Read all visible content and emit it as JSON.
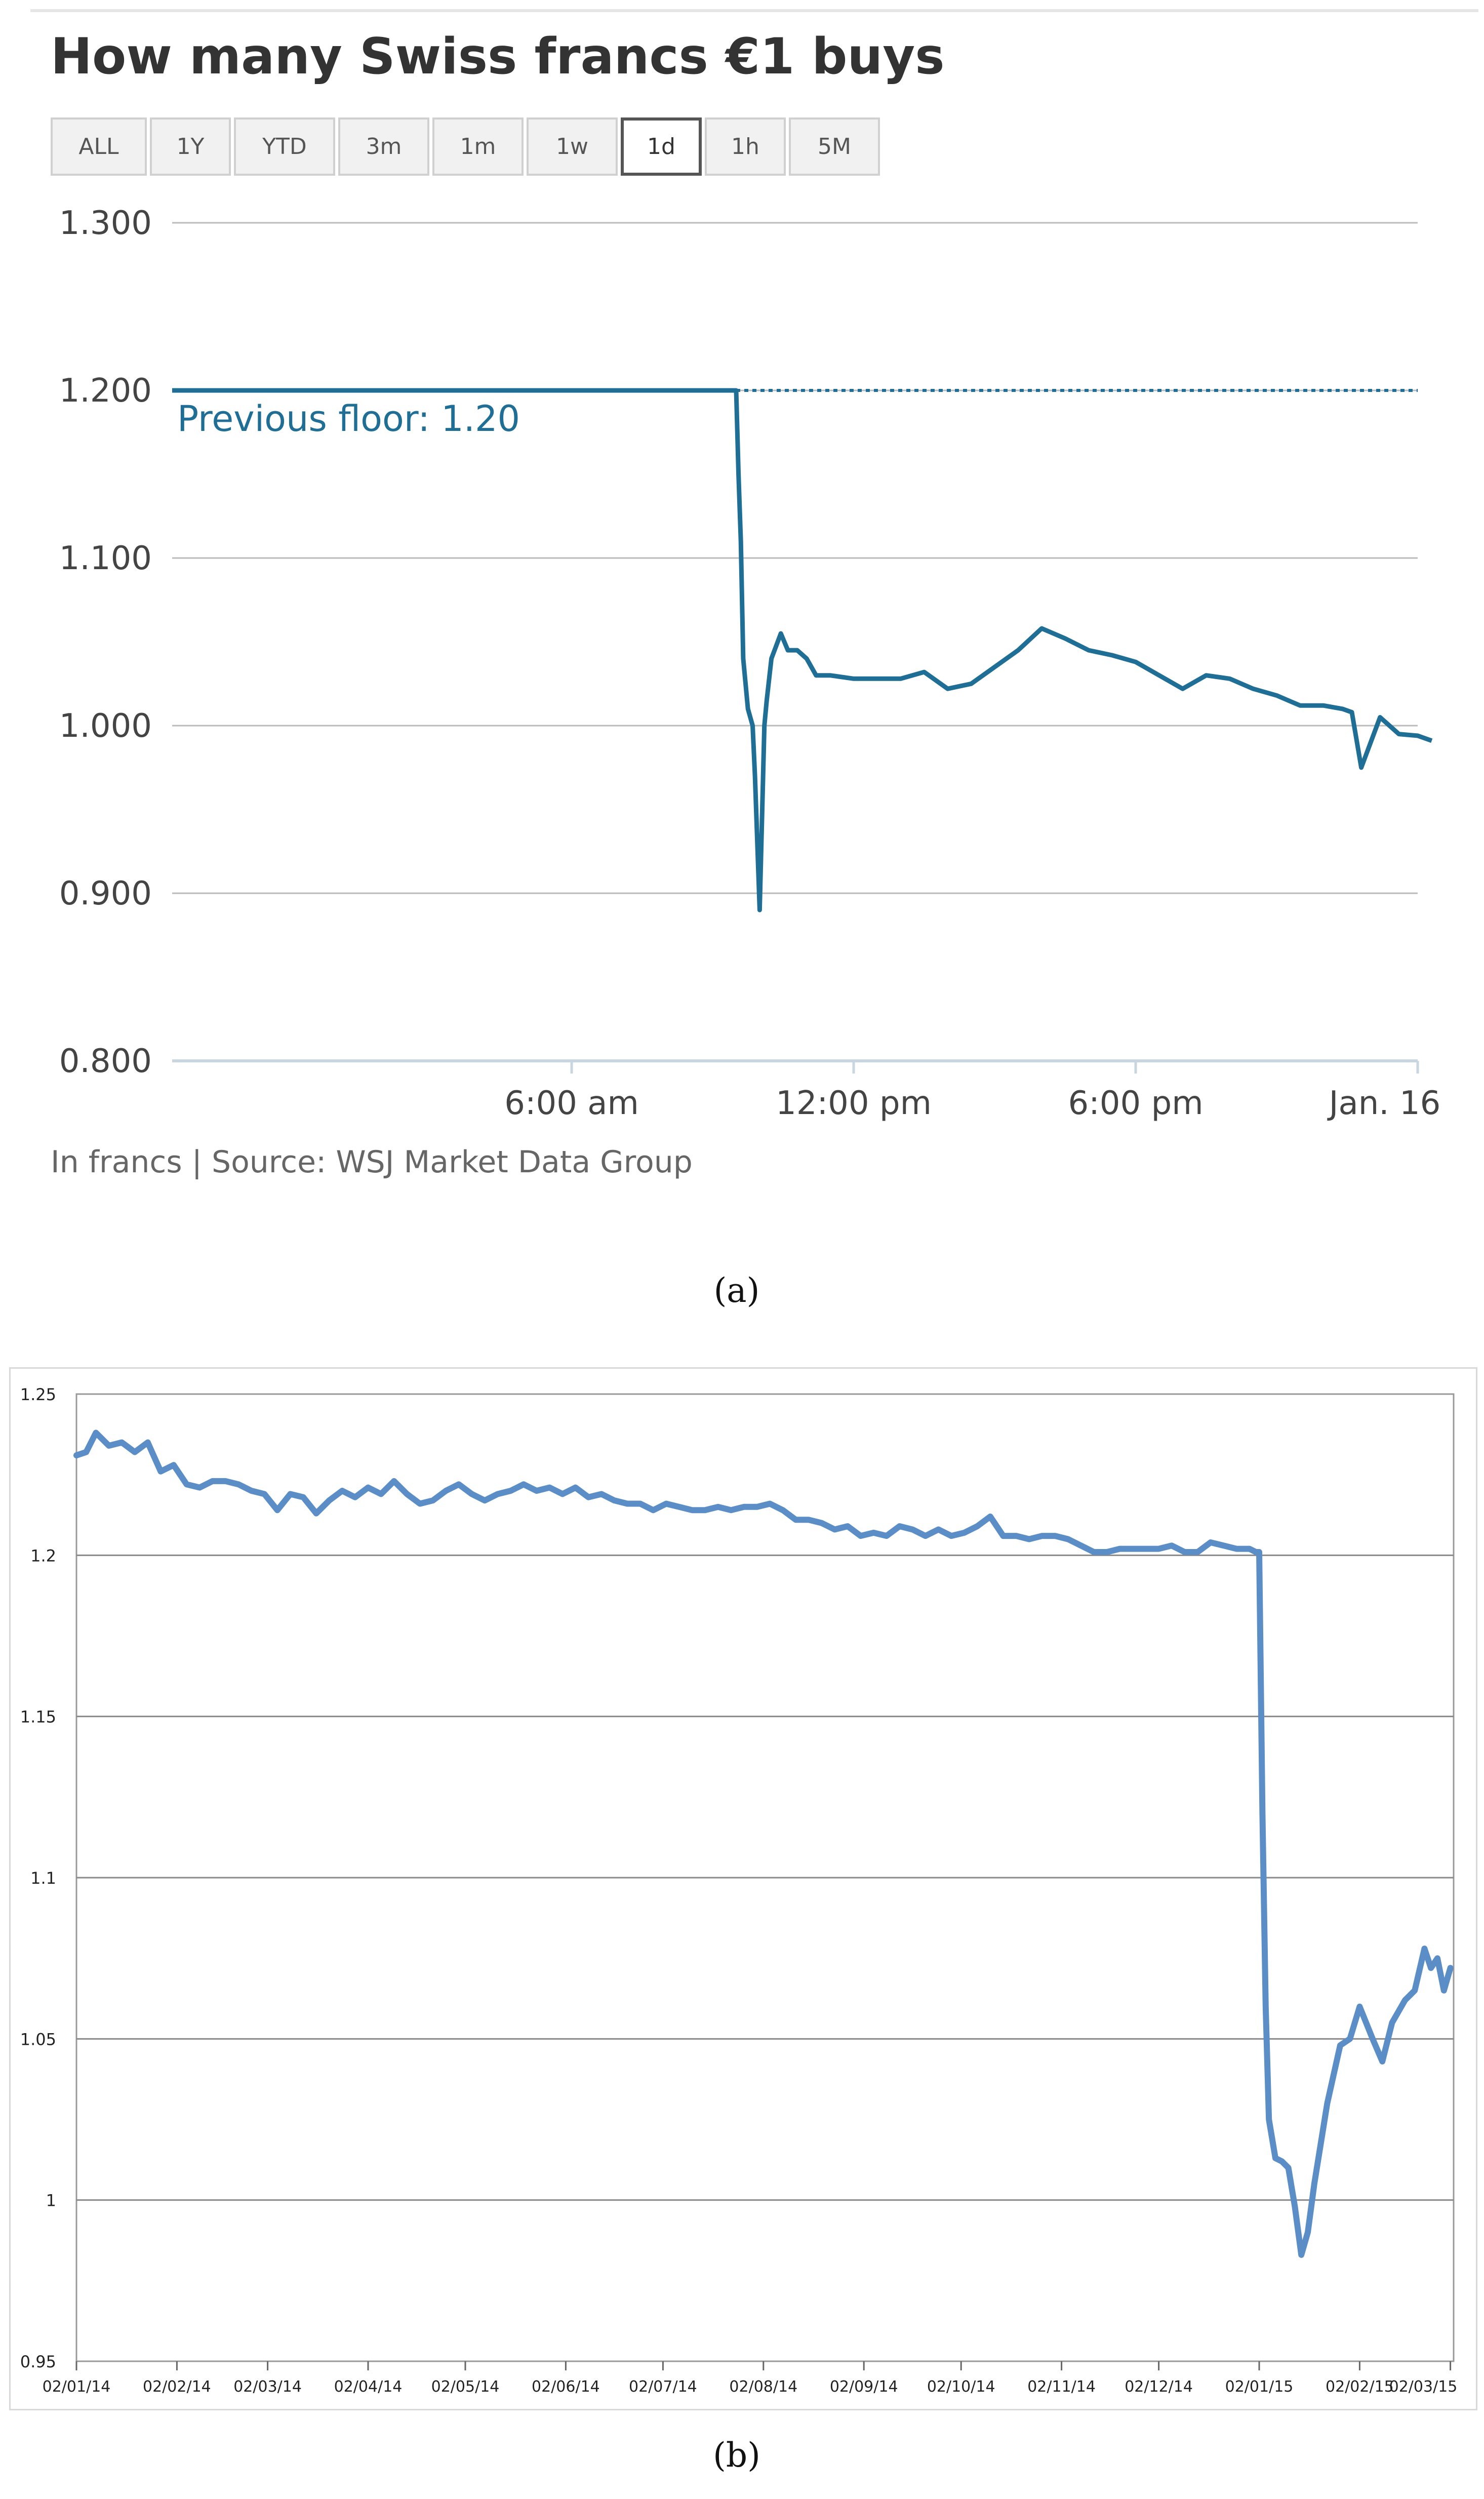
{
  "panel_a": {
    "title": "How many Swiss francs €1 buys",
    "buttons": [
      {
        "label": "ALL",
        "active": false
      },
      {
        "label": "1Y",
        "active": false
      },
      {
        "label": "YTD",
        "active": false
      },
      {
        "label": "3m",
        "active": false
      },
      {
        "label": "1m",
        "active": false
      },
      {
        "label": "1w",
        "active": false
      },
      {
        "label": "1d",
        "active": true
      },
      {
        "label": "1h",
        "active": false
      },
      {
        "label": "5M",
        "active": false
      }
    ],
    "source": "In francs | Source: WSJ Market Data Group",
    "caption": "(a)"
  },
  "panel_b": {
    "caption": "(b)"
  },
  "colors": {
    "line_a": "#1f6e96",
    "line_b": "#5b8ec7",
    "grid": "#bbbbbb",
    "axis_text": "#444444"
  },
  "chart_data": [
    {
      "type": "line",
      "title": "How many Swiss francs €1 buys",
      "ylabel": "",
      "xlabel": "",
      "ylim": [
        0.8,
        1.3
      ],
      "y_ticks": [
        "1.300",
        "1.200",
        "1.100",
        "1.000",
        "0.900",
        "0.800"
      ],
      "y_tick_values": [
        1.3,
        1.2,
        1.1,
        1.0,
        0.9,
        0.8
      ],
      "x_range_hours": [
        -2.5,
        24.0
      ],
      "x_ticks": [
        {
          "label": "6:00 am",
          "hour": 6
        },
        {
          "label": "12:00 pm",
          "hour": 12
        },
        {
          "label": "6:00 pm",
          "hour": 18
        },
        {
          "label": "Jan. 16",
          "hour": 24
        }
      ],
      "reference_line": {
        "value": 1.2,
        "label": "Previous floor: 1.20",
        "style": "dotted"
      },
      "grid": true,
      "series": [
        {
          "x": [
            -2.5,
            9.5,
            9.55,
            9.6,
            9.65,
            9.75,
            9.85,
            9.9,
            10.0,
            10.1,
            10.15,
            10.25,
            10.45,
            10.6,
            10.8,
            11.0,
            11.2,
            11.5,
            12.0,
            12.5,
            13.0,
            13.5,
            14.0,
            14.5,
            15.0,
            15.5,
            16.0,
            16.5,
            17.0,
            17.5,
            18.0,
            18.5,
            19.0,
            19.5,
            20.0,
            20.5,
            21.0,
            21.5,
            22.0,
            22.4,
            22.6,
            22.8,
            23.0,
            23.2,
            23.4,
            23.6,
            24.0,
            24.3
          ],
          "y": [
            1.2,
            1.2,
            1.15,
            1.11,
            1.04,
            1.01,
            1.0,
            0.97,
            0.89,
            1.0,
            1.015,
            1.04,
            1.055,
            1.045,
            1.045,
            1.04,
            1.03,
            1.03,
            1.028,
            1.028,
            1.028,
            1.032,
            1.022,
            1.025,
            1.035,
            1.045,
            1.058,
            1.052,
            1.045,
            1.042,
            1.038,
            1.03,
            1.022,
            1.03,
            1.028,
            1.022,
            1.018,
            1.012,
            1.012,
            1.01,
            1.008,
            0.975,
            0.99,
            1.005,
            1.0,
            0.995,
            0.994,
            0.991
          ]
        }
      ]
    },
    {
      "type": "line",
      "title": "",
      "xlabel": "",
      "ylabel": "",
      "ylim": [
        0.95,
        1.25
      ],
      "y_ticks": [
        "1.25",
        "1.2",
        "1.15",
        "1.1",
        "1.05",
        "1",
        "0.95"
      ],
      "y_tick_values": [
        1.25,
        1.2,
        1.15,
        1.1,
        1.05,
        1.0,
        0.95
      ],
      "x_range_days": [
        0,
        425
      ],
      "x_ticks": [
        {
          "label": "02/01/14",
          "day": 0
        },
        {
          "label": "02/02/14",
          "day": 31
        },
        {
          "label": "02/03/14",
          "day": 59
        },
        {
          "label": "02/04/14",
          "day": 90
        },
        {
          "label": "02/05/14",
          "day": 120
        },
        {
          "label": "02/06/14",
          "day": 151
        },
        {
          "label": "02/07/14",
          "day": 181
        },
        {
          "label": "02/08/14",
          "day": 212
        },
        {
          "label": "02/09/14",
          "day": 243
        },
        {
          "label": "02/10/14",
          "day": 273
        },
        {
          "label": "02/11/14",
          "day": 304
        },
        {
          "label": "02/12/14",
          "day": 334
        },
        {
          "label": "02/01/15",
          "day": 365
        },
        {
          "label": "02/02/15",
          "day": 396
        },
        {
          "label": "02/03/15",
          "day": 424
        }
      ],
      "grid": true,
      "series": [
        {
          "x": [
            0,
            3,
            6,
            10,
            14,
            18,
            22,
            26,
            30,
            34,
            38,
            42,
            46,
            50,
            54,
            58,
            62,
            66,
            70,
            74,
            78,
            82,
            86,
            90,
            94,
            98,
            102,
            106,
            110,
            114,
            118,
            122,
            126,
            130,
            134,
            138,
            142,
            146,
            150,
            154,
            158,
            162,
            166,
            170,
            174,
            178,
            182,
            186,
            190,
            194,
            198,
            202,
            206,
            210,
            214,
            218,
            222,
            226,
            230,
            234,
            238,
            242,
            246,
            250,
            254,
            258,
            262,
            266,
            270,
            274,
            278,
            282,
            286,
            290,
            294,
            298,
            302,
            306,
            310,
            314,
            318,
            322,
            326,
            330,
            334,
            338,
            342,
            346,
            350,
            354,
            358,
            362,
            364,
            365,
            366,
            367,
            368,
            370,
            372,
            374,
            376,
            378,
            380,
            382,
            386,
            390,
            393,
            396,
            400,
            403,
            406,
            410,
            413,
            416,
            418,
            420,
            422,
            424
          ],
          "y": [
            1.231,
            1.232,
            1.238,
            1.234,
            1.235,
            1.232,
            1.235,
            1.226,
            1.228,
            1.222,
            1.221,
            1.223,
            1.223,
            1.222,
            1.22,
            1.219,
            1.214,
            1.219,
            1.218,
            1.213,
            1.217,
            1.22,
            1.218,
            1.221,
            1.219,
            1.223,
            1.219,
            1.216,
            1.217,
            1.22,
            1.222,
            1.219,
            1.217,
            1.219,
            1.22,
            1.222,
            1.22,
            1.221,
            1.219,
            1.221,
            1.218,
            1.219,
            1.217,
            1.216,
            1.216,
            1.214,
            1.216,
            1.215,
            1.214,
            1.214,
            1.215,
            1.214,
            1.215,
            1.215,
            1.216,
            1.214,
            1.211,
            1.211,
            1.21,
            1.208,
            1.209,
            1.206,
            1.207,
            1.206,
            1.209,
            1.208,
            1.206,
            1.208,
            1.206,
            1.207,
            1.209,
            1.212,
            1.206,
            1.206,
            1.205,
            1.206,
            1.206,
            1.205,
            1.203,
            1.201,
            1.201,
            1.202,
            1.202,
            1.202,
            1.202,
            1.203,
            1.201,
            1.201,
            1.204,
            1.203,
            1.202,
            1.202,
            1.201,
            1.201,
            1.12,
            1.06,
            1.025,
            1.013,
            1.012,
            1.01,
            0.998,
            0.983,
            0.99,
            1.005,
            1.03,
            1.048,
            1.05,
            1.06,
            1.05,
            1.043,
            1.055,
            1.062,
            1.065,
            1.078,
            1.072,
            1.075,
            1.065,
            1.072
          ]
        }
      ]
    }
  ]
}
